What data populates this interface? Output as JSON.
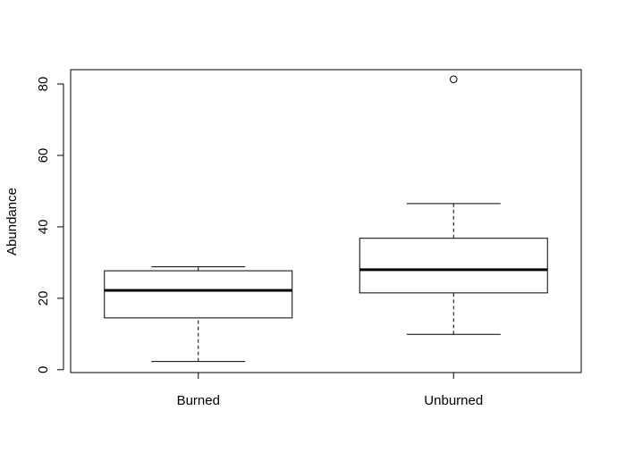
{
  "chart_data": {
    "type": "boxplot",
    "title": "",
    "xlabel": "",
    "ylabel": "Abundance",
    "ylim": [
      -0.8,
      84
    ],
    "yticks": [
      0,
      20,
      40,
      60,
      80
    ],
    "grid": false,
    "categories": [
      "Burned",
      "Unburned"
    ],
    "boxes": [
      {
        "category": "Burned",
        "whisker_low": 2.3,
        "q1": 14.5,
        "median": 22.2,
        "q3": 27.7,
        "whisker_high": 28.8,
        "outliers": []
      },
      {
        "category": "Unburned",
        "whisker_low": 9.9,
        "q1": 21.5,
        "median": 28.0,
        "q3": 36.8,
        "whisker_high": 46.5,
        "outliers": [
          81.3
        ]
      }
    ]
  },
  "colors": {
    "ink": "#000000",
    "background": "#ffffff"
  }
}
